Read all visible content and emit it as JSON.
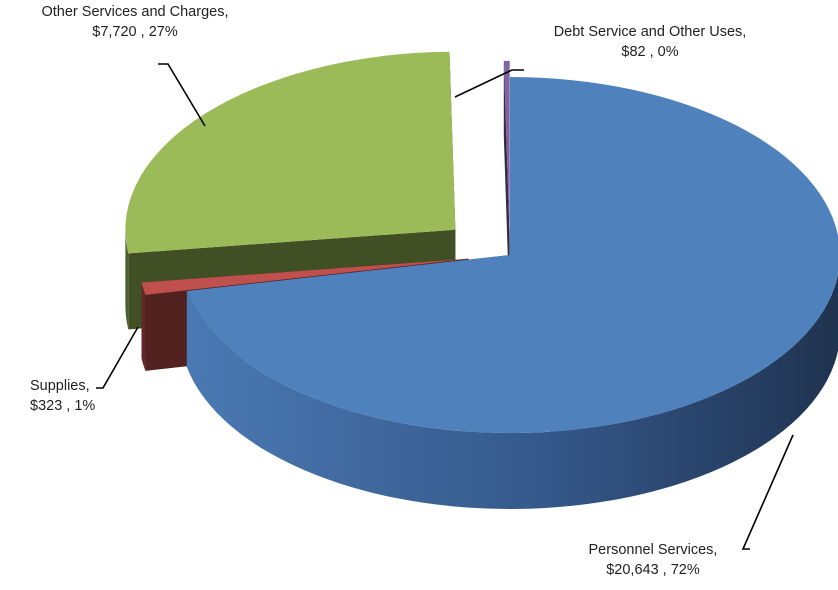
{
  "chart_data": {
    "type": "pie",
    "style": "3d-exploded",
    "title": "",
    "slices": [
      {
        "label": "Personnel Services",
        "value": 20643,
        "value_text": "$20,643",
        "percent_text": "72%",
        "color": "#4f81bd"
      },
      {
        "label": "Supplies",
        "value": 323,
        "value_text": "$323",
        "percent_text": "1%",
        "color": "#c0504d"
      },
      {
        "label": "Other Services and Charges",
        "value": 7720,
        "value_text": "$7,720",
        "percent_text": "27%",
        "color": "#9bbb59"
      },
      {
        "label": "Debt Service and Other Uses",
        "value": 82,
        "value_text": "$82",
        "percent_text": "0%",
        "color": "#8064a2"
      }
    ]
  },
  "labels": {
    "personnel": {
      "line1": "Personnel Services,",
      "line2": "$20,643 , 72%"
    },
    "supplies": {
      "line1": "Supplies,",
      "line2": "$323 , 1%"
    },
    "other": {
      "line1": "Other Services and Charges,",
      "line2": "$7,720 , 27%"
    },
    "debt": {
      "line1": "Debt Service and Other Uses,",
      "line2": "$82 , 0%"
    }
  }
}
